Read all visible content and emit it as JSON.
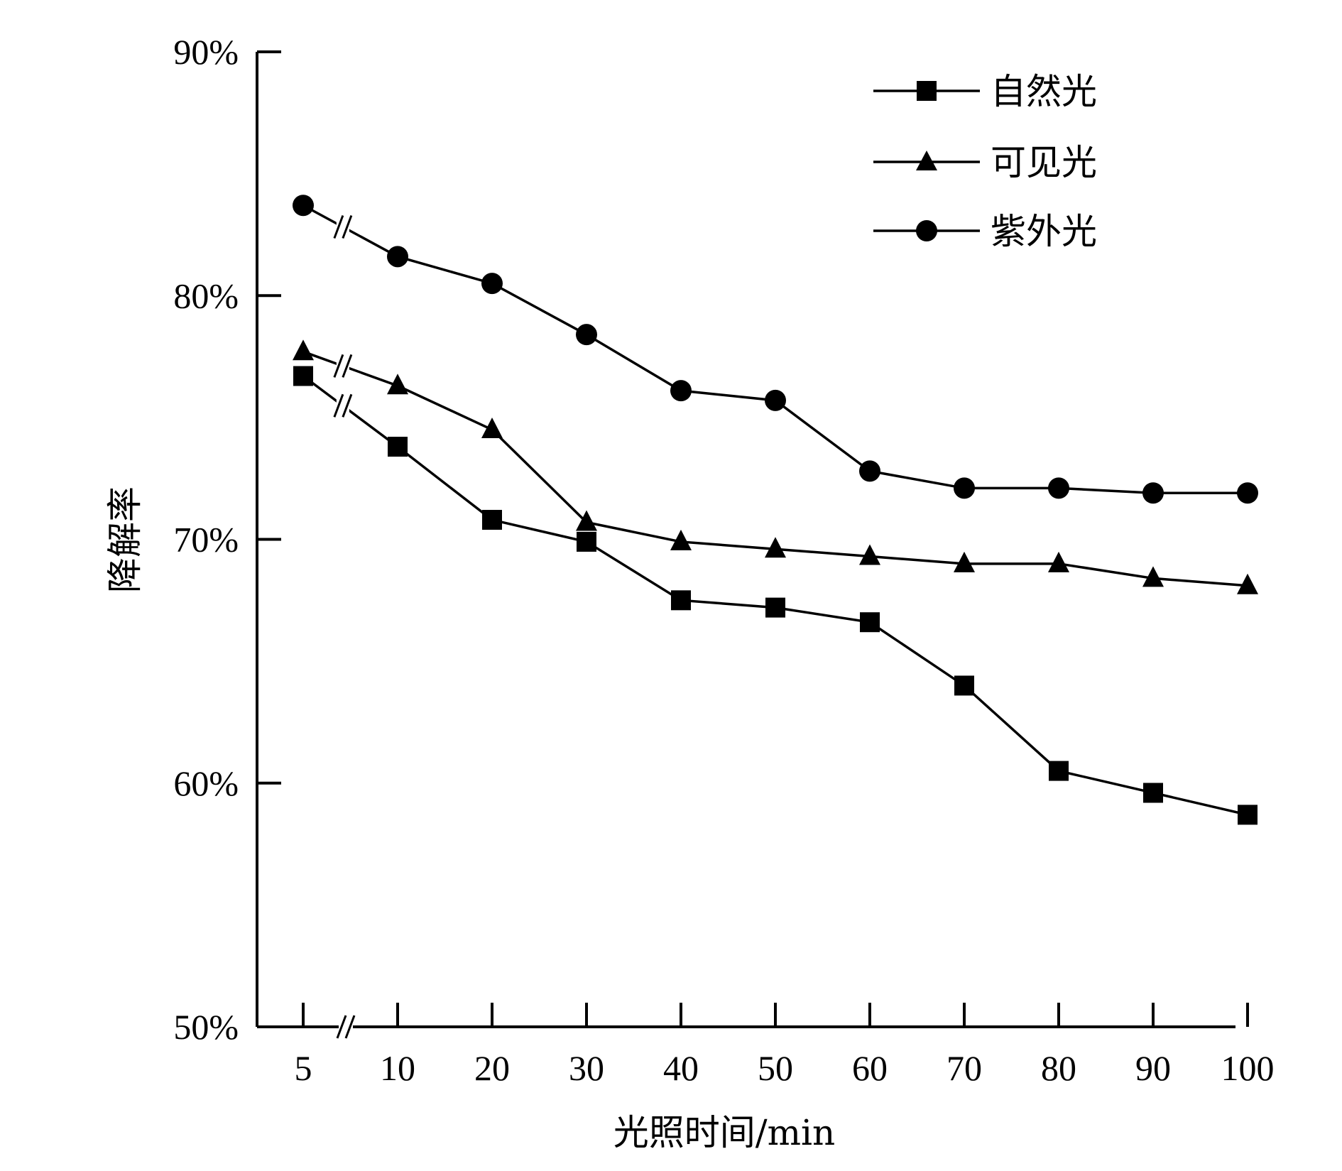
{
  "chart_data": {
    "type": "line",
    "categories": [
      "5",
      "10",
      "20",
      "30",
      "40",
      "50",
      "60",
      "70",
      "80",
      "90",
      "100"
    ],
    "x": [
      5,
      10,
      20,
      30,
      40,
      50,
      60,
      70,
      80,
      90,
      100
    ],
    "xlabel": "光照时间/min",
    "ylabel": "降解率",
    "ylim": [
      50,
      90
    ],
    "yticks": [
      50,
      60,
      70,
      80,
      90
    ],
    "ytick_labels": [
      "50%",
      "60%",
      "70%",
      "80%",
      "90%"
    ],
    "unit": "%",
    "grid": false,
    "legend_position": "top-right",
    "axis_break": "between 5 and 10",
    "series": [
      {
        "name": "自然光",
        "marker": "square",
        "values": [
          76.7,
          73.8,
          70.8,
          69.9,
          67.5,
          67.2,
          66.6,
          64.0,
          60.5,
          59.6,
          58.7
        ]
      },
      {
        "name": "可见光",
        "marker": "triangle",
        "values": [
          77.7,
          76.3,
          74.5,
          70.7,
          69.9,
          69.6,
          69.3,
          69.0,
          69.0,
          68.4,
          68.1
        ]
      },
      {
        "name": "紫外光",
        "marker": "circle",
        "values": [
          83.7,
          81.6,
          80.5,
          78.4,
          76.1,
          75.7,
          72.8,
          72.1,
          72.1,
          71.9,
          71.9
        ]
      }
    ],
    "colors": {
      "line": "#000000",
      "marker": "#000000",
      "background": "#ffffff"
    }
  }
}
